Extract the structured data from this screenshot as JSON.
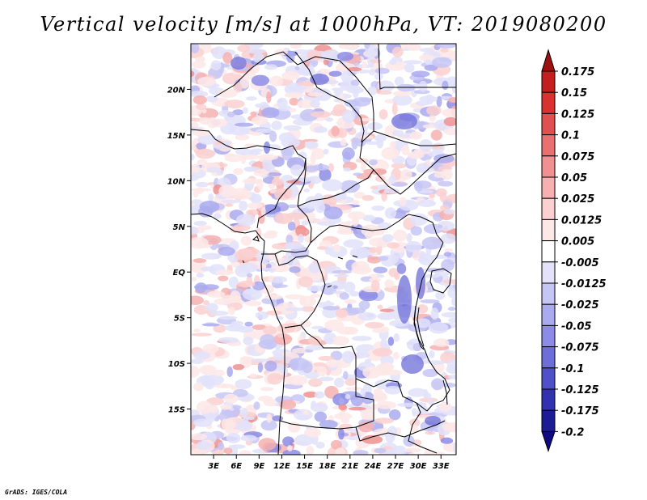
{
  "title": "Vertical velocity [m/s] at 1000hPa, VT: 2019080200",
  "footer": "GrADS: IGES/COLA",
  "map": {
    "lon_range": [
      0,
      35
    ],
    "lat_range": [
      -20,
      25
    ],
    "lat_ticks": [
      {
        "value": 20,
        "label": "20N"
      },
      {
        "value": 15,
        "label": "15N"
      },
      {
        "value": 10,
        "label": "10N"
      },
      {
        "value": 5,
        "label": "5N"
      },
      {
        "value": 0,
        "label": "EQ"
      },
      {
        "value": -5,
        "label": "5S"
      },
      {
        "value": -10,
        "label": "10S"
      },
      {
        "value": -15,
        "label": "15S"
      }
    ],
    "lon_ticks": [
      {
        "value": 3,
        "label": "3E"
      },
      {
        "value": 6,
        "label": "6E"
      },
      {
        "value": 9,
        "label": "9E"
      },
      {
        "value": 12,
        "label": "12E"
      },
      {
        "value": 15,
        "label": "15E"
      },
      {
        "value": 18,
        "label": "18E"
      },
      {
        "value": 21,
        "label": "21E"
      },
      {
        "value": 24,
        "label": "24E"
      },
      {
        "value": 27,
        "label": "27E"
      },
      {
        "value": 30,
        "label": "30E"
      },
      {
        "value": 33,
        "label": "33E"
      }
    ]
  },
  "colorbar": {
    "labels": [
      "0.175",
      "0.15",
      "0.125",
      "0.1",
      "0.075",
      "0.05",
      "0.025",
      "0.0125",
      "0.005",
      "-0.005",
      "-0.0125",
      "-0.025",
      "-0.05",
      "-0.075",
      "-0.1",
      "-0.125",
      "-0.175",
      "-0.2"
    ],
    "colors": [
      "#a01010",
      "#c41f1f",
      "#d8332f",
      "#e05050",
      "#e87070",
      "#f09090",
      "#f6b0b0",
      "#fad0d0",
      "#fde8e8",
      "#ffffff",
      "#e2e2fa",
      "#c6c6f4",
      "#aaaaee",
      "#8c8ce6",
      "#6e6ed8",
      "#5050c8",
      "#3232b0",
      "#1c1c96",
      "#100a80"
    ]
  }
}
